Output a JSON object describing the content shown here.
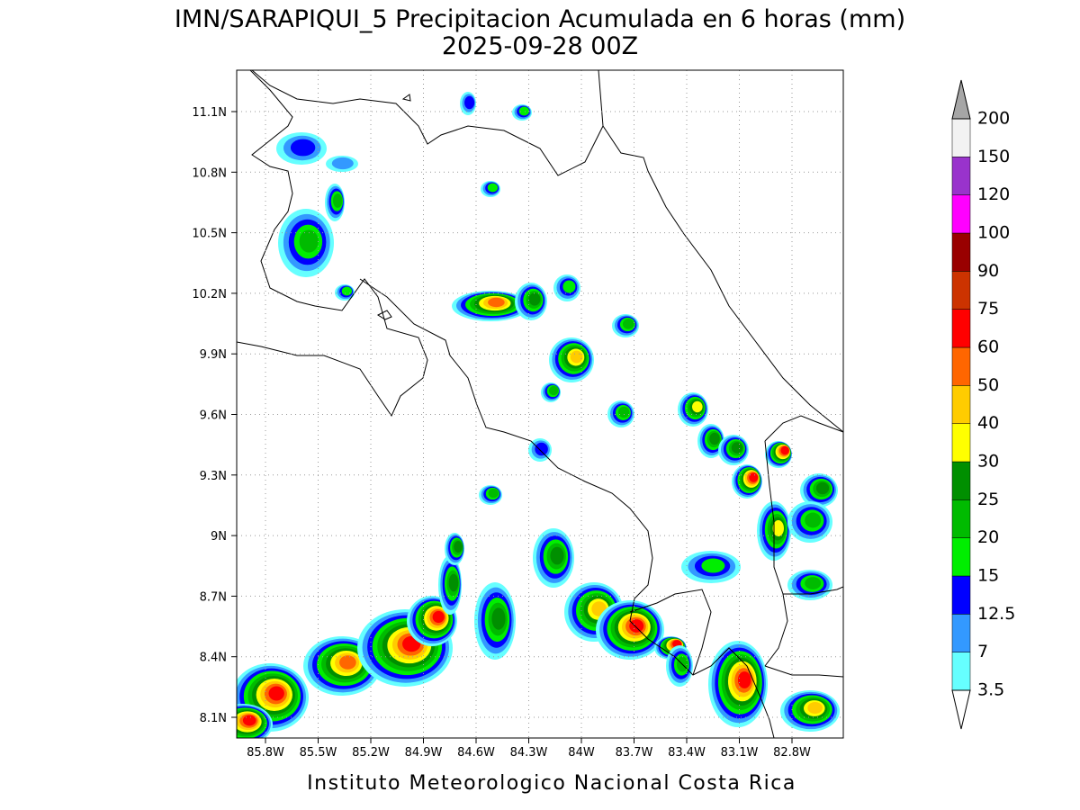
{
  "header": {
    "title": "IMN/SARAPIQUI_5 Precipitacion Acumulada en 6 horas (mm)",
    "subtitle": "2025-09-28 00Z"
  },
  "map": {
    "lon_labels": [
      "85.8W",
      "85.5W",
      "85.2W",
      "84.9W",
      "84.6W",
      "84.3W",
      "84W",
      "83.7W",
      "83.4W",
      "83.1W",
      "82.8W"
    ],
    "lat_labels": [
      "11.1N",
      "10.8N",
      "10.5N",
      "10.2N",
      "9.9N",
      "9.6N",
      "9.3N",
      "9N",
      "8.7N",
      "8.4N",
      "8.1N"
    ]
  },
  "colorbar": {
    "levels": [
      3.5,
      7,
      12.5,
      15,
      20,
      25,
      30,
      40,
      50,
      60,
      75,
      90,
      100,
      120,
      150,
      200
    ],
    "colors": [
      "#66ffff",
      "#3399ff",
      "#0000ff",
      "#00ee00",
      "#00bb00",
      "#008f00",
      "#ffff00",
      "#ffcc00",
      "#ff6600",
      "#ff0000",
      "#cc3300",
      "#990000",
      "#ff00ff",
      "#9933cc",
      "#f2f2f2"
    ],
    "over_color": "#a6a6a6",
    "under_color": "#ffffff"
  },
  "footer": "Instituto Meteorologico Nacional Costa Rica"
}
